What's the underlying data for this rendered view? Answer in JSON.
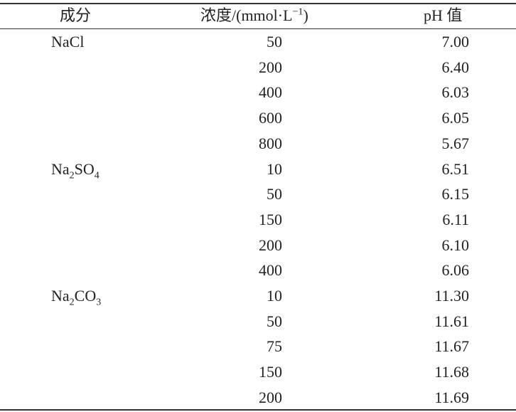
{
  "table": {
    "header": {
      "component": "成分",
      "concentration": [
        {
          "t": "浓度/(mmol·L"
        },
        {
          "sup": "−1"
        },
        {
          "t": ")"
        }
      ],
      "ph": "pH 值"
    },
    "groups": [
      {
        "component": [
          {
            "t": "NaCl"
          }
        ],
        "rows": [
          [
            50,
            "7.00"
          ],
          [
            200,
            "6.40"
          ],
          [
            400,
            "6.03"
          ],
          [
            600,
            "6.05"
          ],
          [
            800,
            "5.67"
          ]
        ]
      },
      {
        "component": [
          {
            "t": "Na"
          },
          {
            "sub": "2"
          },
          {
            "t": "SO"
          },
          {
            "sub": "4"
          }
        ],
        "rows": [
          [
            10,
            "6.51"
          ],
          [
            50,
            "6.15"
          ],
          [
            150,
            "6.11"
          ],
          [
            200,
            "6.10"
          ],
          [
            400,
            "6.06"
          ]
        ]
      },
      {
        "component": [
          {
            "t": "Na"
          },
          {
            "sub": "2"
          },
          {
            "t": "CO"
          },
          {
            "sub": "3"
          }
        ],
        "rows": [
          [
            10,
            "11.30"
          ],
          [
            50,
            "11.61"
          ],
          [
            75,
            "11.67"
          ],
          [
            150,
            "11.68"
          ],
          [
            200,
            "11.69"
          ]
        ]
      }
    ]
  }
}
